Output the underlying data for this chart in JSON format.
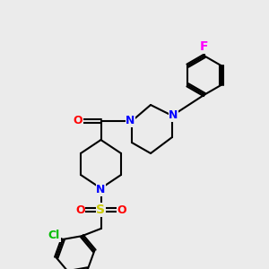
{
  "background_color": "#EBEBEB",
  "bond_color": "#000000",
  "bond_width": 1.5,
  "atom_colors": {
    "N": "#0000FF",
    "O": "#FF0000",
    "S": "#CCCC00",
    "F": "#FF00FF",
    "Cl": "#00BB00",
    "C": "#000000"
  },
  "font_size": 9,
  "label_font_size": 9
}
